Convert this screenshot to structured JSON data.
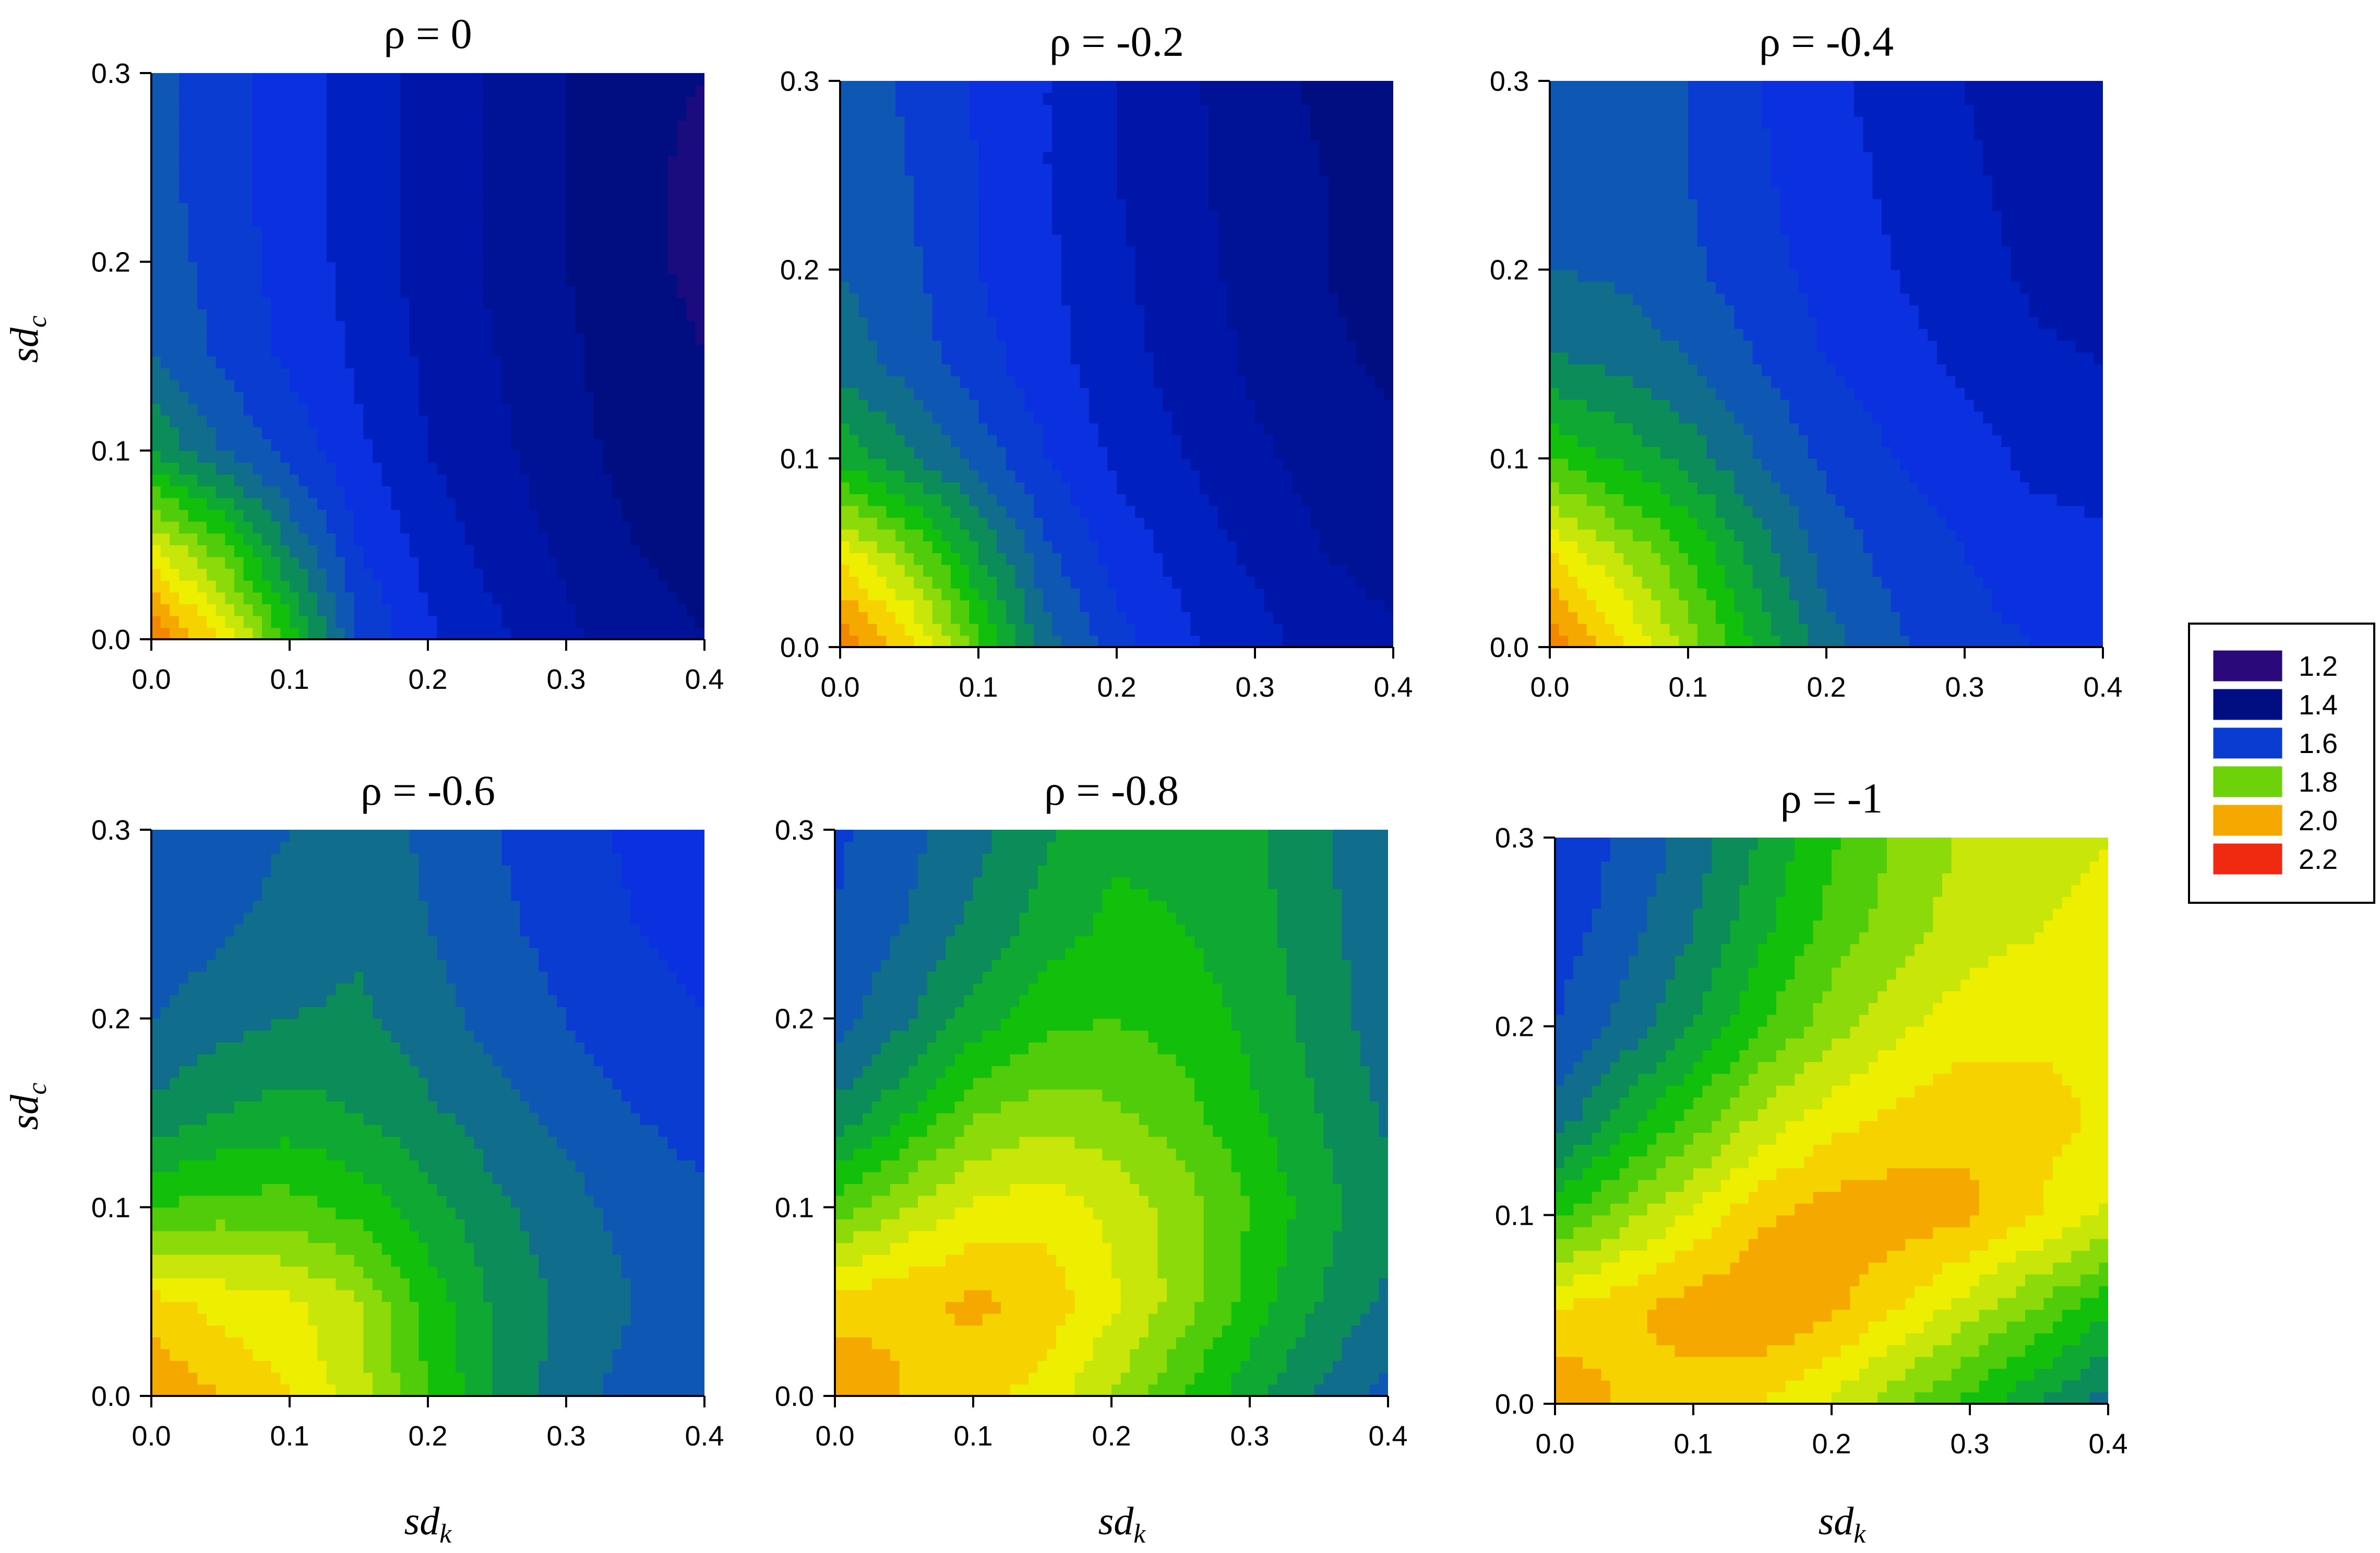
{
  "figure": {
    "xlabel": "sd",
    "xlabel_subscript": "k",
    "ylabel": "sd",
    "ylabel_subscript": "c"
  },
  "legend": {
    "placement": "right",
    "entries": [
      {
        "label": "1.2",
        "color": "#2a0a7a"
      },
      {
        "label": "1.4",
        "color": "#000e82"
      },
      {
        "label": "1.6",
        "color": "#0a3cd2"
      },
      {
        "label": "1.8",
        "color": "#6ed20a"
      },
      {
        "label": "2.0",
        "color": "#f5a800"
      },
      {
        "label": "2.2",
        "color": "#f02a10"
      }
    ]
  },
  "chart_data": {
    "type": "heatmap",
    "subtype": "filled-contour",
    "x": [
      0.0,
      0.05,
      0.1,
      0.15,
      0.2,
      0.25,
      0.3,
      0.35,
      0.4
    ],
    "y": [
      0.0,
      0.05,
      0.1,
      0.15,
      0.2,
      0.25,
      0.3
    ],
    "xticks": [
      "0.0",
      "0.1",
      "0.2",
      "0.3",
      "0.4"
    ],
    "yticks": [
      "0.0",
      "0.1",
      "0.2",
      "0.3"
    ],
    "xlim": [
      0,
      0.4
    ],
    "ylim": [
      0,
      0.3
    ],
    "levels": [
      1.2,
      1.25,
      1.3,
      1.35,
      1.4,
      1.45,
      1.5,
      1.55,
      1.6,
      1.65,
      1.7,
      1.75,
      1.8,
      1.85,
      1.9,
      1.95,
      2.0,
      2.05,
      2.1,
      2.15,
      2.2
    ],
    "level_colors": [
      "#2a0a7a",
      "#1a0c7e",
      "#000e82",
      "#001296",
      "#0016a8",
      "#0020c0",
      "#0a30e0",
      "#0a3cd2",
      "#0e58b4",
      "#106e8c",
      "#0c8c58",
      "#0fa832",
      "#12c00c",
      "#50cc0a",
      "#8cda0a",
      "#c8e60a",
      "#eeee00",
      "#f6d200",
      "#f5a800",
      "#f28800",
      "#f05a08",
      "#f02a10"
    ],
    "panels": [
      {
        "title": "ρ = 0",
        "z": [
          [
            2.15,
            2.0,
            1.78,
            1.55,
            1.46,
            1.41,
            1.36,
            1.32,
            1.3
          ],
          [
            1.95,
            1.82,
            1.64,
            1.5,
            1.43,
            1.38,
            1.34,
            1.3,
            1.28
          ],
          [
            1.7,
            1.6,
            1.53,
            1.46,
            1.4,
            1.36,
            1.32,
            1.28,
            1.26
          ],
          [
            1.6,
            1.54,
            1.49,
            1.44,
            1.39,
            1.35,
            1.31,
            1.27,
            1.25
          ],
          [
            1.58,
            1.53,
            1.48,
            1.43,
            1.38,
            1.34,
            1.3,
            1.26,
            1.24
          ],
          [
            1.57,
            1.52,
            1.47,
            1.43,
            1.38,
            1.34,
            1.3,
            1.26,
            1.24
          ],
          [
            1.57,
            1.52,
            1.47,
            1.43,
            1.38,
            1.34,
            1.3,
            1.26,
            1.25
          ]
        ]
      },
      {
        "title": "ρ = -0.2",
        "z": [
          [
            2.15,
            2.02,
            1.82,
            1.62,
            1.52,
            1.46,
            1.42,
            1.38,
            1.36
          ],
          [
            1.98,
            1.86,
            1.7,
            1.56,
            1.48,
            1.43,
            1.39,
            1.35,
            1.33
          ],
          [
            1.74,
            1.66,
            1.58,
            1.5,
            1.44,
            1.4,
            1.36,
            1.33,
            1.31
          ],
          [
            1.63,
            1.58,
            1.52,
            1.47,
            1.42,
            1.38,
            1.34,
            1.31,
            1.29
          ],
          [
            1.6,
            1.56,
            1.5,
            1.46,
            1.41,
            1.37,
            1.33,
            1.3,
            1.28
          ],
          [
            1.59,
            1.55,
            1.5,
            1.45,
            1.4,
            1.36,
            1.33,
            1.3,
            1.27
          ],
          [
            1.59,
            1.54,
            1.49,
            1.45,
            1.4,
            1.36,
            1.32,
            1.29,
            1.27
          ]
        ]
      },
      {
        "title": "ρ = -0.4",
        "z": [
          [
            2.15,
            2.02,
            1.88,
            1.74,
            1.62,
            1.56,
            1.52,
            1.5,
            1.48
          ],
          [
            2.0,
            1.9,
            1.8,
            1.68,
            1.58,
            1.53,
            1.5,
            1.47,
            1.46
          ],
          [
            1.8,
            1.74,
            1.68,
            1.6,
            1.54,
            1.5,
            1.47,
            1.44,
            1.43
          ],
          [
            1.66,
            1.64,
            1.6,
            1.55,
            1.5,
            1.47,
            1.44,
            1.41,
            1.4
          ],
          [
            1.6,
            1.59,
            1.56,
            1.52,
            1.48,
            1.45,
            1.42,
            1.39,
            1.38
          ],
          [
            1.59,
            1.58,
            1.55,
            1.51,
            1.47,
            1.44,
            1.41,
            1.38,
            1.37
          ],
          [
            1.58,
            1.58,
            1.55,
            1.5,
            1.46,
            1.43,
            1.4,
            1.37,
            1.36
          ]
        ]
      },
      {
        "title": "ρ = -0.6",
        "z": [
          [
            2.1,
            2.05,
            2.0,
            1.92,
            1.8,
            1.7,
            1.62,
            1.58,
            1.56
          ],
          [
            2.02,
            1.98,
            1.96,
            1.9,
            1.78,
            1.69,
            1.64,
            1.6,
            1.58
          ],
          [
            1.8,
            1.82,
            1.82,
            1.78,
            1.72,
            1.66,
            1.62,
            1.58,
            1.56
          ],
          [
            1.66,
            1.7,
            1.72,
            1.7,
            1.66,
            1.62,
            1.58,
            1.55,
            1.53
          ],
          [
            1.6,
            1.63,
            1.65,
            1.66,
            1.62,
            1.58,
            1.55,
            1.52,
            1.5
          ],
          [
            1.56,
            1.59,
            1.62,
            1.64,
            1.6,
            1.56,
            1.53,
            1.5,
            1.48
          ],
          [
            1.55,
            1.57,
            1.6,
            1.63,
            1.59,
            1.55,
            1.52,
            1.49,
            1.47
          ]
        ]
      },
      {
        "title": "ρ = -0.8",
        "z": [
          [
            2.1,
            2.05,
            2.02,
            1.98,
            1.9,
            1.8,
            1.72,
            1.64,
            1.58
          ],
          [
            2.02,
            2.04,
            2.06,
            2.04,
            1.96,
            1.88,
            1.78,
            1.7,
            1.64
          ],
          [
            1.82,
            1.9,
            1.96,
            1.98,
            1.94,
            1.88,
            1.8,
            1.72,
            1.66
          ],
          [
            1.66,
            1.74,
            1.84,
            1.88,
            1.86,
            1.82,
            1.76,
            1.7,
            1.64
          ],
          [
            1.58,
            1.64,
            1.72,
            1.78,
            1.8,
            1.78,
            1.74,
            1.68,
            1.62
          ],
          [
            1.55,
            1.6,
            1.66,
            1.72,
            1.76,
            1.75,
            1.72,
            1.67,
            1.61
          ],
          [
            1.54,
            1.58,
            1.63,
            1.69,
            1.74,
            1.74,
            1.71,
            1.66,
            1.6
          ]
        ]
      },
      {
        "title": "ρ = -1",
        "z": [
          [
            2.1,
            2.04,
            2.02,
            2.0,
            1.94,
            1.86,
            1.78,
            1.7,
            1.62
          ],
          [
            2.0,
            2.04,
            2.08,
            2.1,
            2.06,
            2.0,
            1.92,
            1.84,
            1.76
          ],
          [
            1.78,
            1.88,
            1.96,
            2.04,
            2.08,
            2.08,
            2.06,
            2.0,
            1.94
          ],
          [
            1.62,
            1.72,
            1.82,
            1.92,
            1.98,
            2.02,
            2.04,
            2.02,
            1.99
          ],
          [
            1.55,
            1.62,
            1.7,
            1.8,
            1.88,
            1.94,
            1.98,
            1.99,
            1.98
          ],
          [
            1.52,
            1.58,
            1.65,
            1.74,
            1.82,
            1.88,
            1.93,
            1.95,
            1.96
          ],
          [
            1.5,
            1.56,
            1.62,
            1.71,
            1.79,
            1.86,
            1.91,
            1.94,
            1.95
          ]
        ]
      }
    ]
  }
}
